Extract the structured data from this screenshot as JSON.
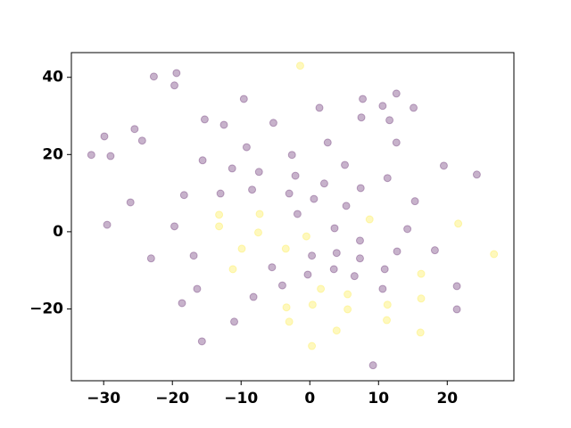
{
  "chart_data": {
    "type": "scatter",
    "xlim": [
      -34.7,
      29.7
    ],
    "ylim": [
      -38.6,
      46.4
    ],
    "xticks": [
      {
        "value": -30,
        "label": "−30"
      },
      {
        "value": -20,
        "label": "−20"
      },
      {
        "value": -10,
        "label": "−10"
      },
      0,
      10,
      20
    ],
    "yticks": [
      {
        "value": -20,
        "label": "−20"
      },
      0,
      20,
      40
    ],
    "alpha": 0.3,
    "series": [
      {
        "color": "#440154",
        "x": [
          -31.8,
          -29.9,
          -29.0,
          -29.5,
          -25.5,
          -24.4,
          -26.1,
          -22.7,
          -19.4,
          -19.7,
          -23.1,
          -19.7,
          -18.3,
          -15.3,
          -15.6,
          -16.9,
          -16.4,
          -18.6,
          -15.7,
          -12.5,
          -9.6,
          -9.2,
          -11.3,
          -13.0,
          -8.4,
          -7.4,
          -5.3,
          -11.0,
          -8.2,
          -5.5,
          -4.0,
          -2.6,
          -2.1,
          -3.0,
          -1.8,
          1.4,
          2.6,
          2.1,
          0.6,
          0.3,
          -0.3,
          3.6,
          3.9,
          3.5,
          5.1,
          5.3,
          6.5,
          7.5,
          7.7,
          7.4,
          7.3,
          7.3,
          9.2,
          10.6,
          12.6,
          11.6,
          15.1,
          12.6,
          11.3,
          10.9,
          10.6,
          12.7,
          14.2,
          15.3,
          19.5,
          24.3,
          18.2,
          21.4,
          21.4
        ],
        "values": [
          19.9,
          24.7,
          19.6,
          1.8,
          26.6,
          23.6,
          7.6,
          40.2,
          41.1,
          37.9,
          -6.9,
          1.4,
          9.5,
          29.1,
          18.5,
          -6.2,
          -14.8,
          -18.5,
          -28.4,
          27.7,
          34.4,
          21.9,
          16.4,
          9.9,
          10.9,
          15.5,
          28.2,
          -23.3,
          -16.9,
          -9.2,
          -13.9,
          19.9,
          14.5,
          9.9,
          4.6,
          32.1,
          23.1,
          12.5,
          8.5,
          -6.2,
          -11.1,
          0.9,
          -5.5,
          -9.7,
          17.3,
          6.7,
          -11.5,
          29.6,
          34.4,
          11.3,
          -2.3,
          -6.9,
          -34.6,
          32.6,
          35.8,
          28.9,
          32.1,
          23.1,
          13.9,
          -9.7,
          -14.8,
          -5.1,
          0.7,
          7.9,
          17.1,
          14.8,
          -4.8,
          -14.1,
          -20.1
        ]
      },
      {
        "color": "#fde725",
        "x": [
          -1.4,
          -13.2,
          -13.2,
          -7.3,
          -7.5,
          -9.9,
          -11.2,
          -3.5,
          -0.5,
          -3.4,
          -3.0,
          0.4,
          1.6,
          0.3,
          5.5,
          5.5,
          3.9,
          8.7,
          11.3,
          11.2,
          16.2,
          16.2,
          16.1,
          21.6,
          26.8
        ],
        "values": [
          43.0,
          4.4,
          1.4,
          4.6,
          -0.2,
          -4.4,
          -9.7,
          -4.4,
          -1.2,
          -19.6,
          -23.3,
          -18.9,
          -14.8,
          -29.6,
          -16.2,
          -20.1,
          -25.6,
          3.2,
          -18.9,
          -22.9,
          -10.9,
          -17.3,
          -26.1,
          2.1,
          -5.8
        ]
      }
    ]
  }
}
